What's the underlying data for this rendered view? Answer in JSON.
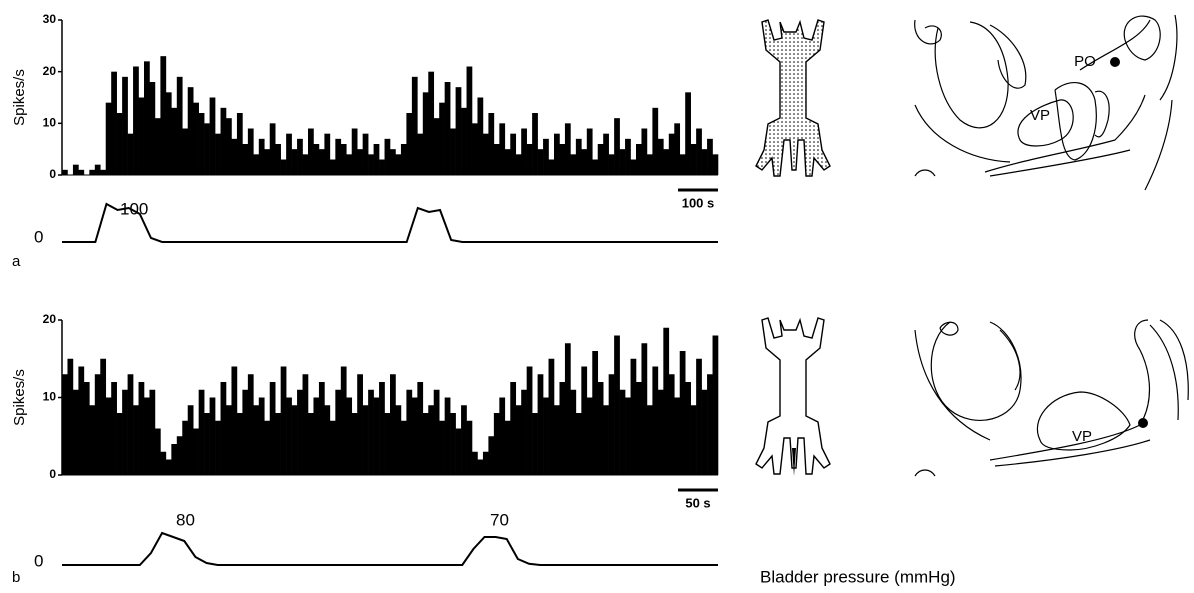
{
  "chart_data": [
    {
      "type": "bar",
      "panel": "a",
      "y_label": "Spikes/s",
      "ylim": [
        0,
        30
      ],
      "yticks": [
        0,
        10,
        20,
        30
      ],
      "color": "#000000",
      "scale_bar": "100 s",
      "values": [
        1,
        0,
        2,
        1,
        0,
        1,
        2,
        1,
        14,
        20,
        12,
        19,
        8,
        21,
        15,
        22,
        18,
        11,
        23,
        16,
        13,
        19,
        9,
        17,
        14,
        12,
        10,
        15,
        8,
        13,
        11,
        7,
        12,
        6,
        9,
        4,
        7,
        5,
        10,
        6,
        3,
        8,
        5,
        7,
        4,
        9,
        6,
        5,
        8,
        3,
        7,
        6,
        4,
        9,
        5,
        8,
        4,
        6,
        3,
        7,
        5,
        4,
        6,
        12,
        19,
        8,
        16,
        20,
        11,
        14,
        18,
        9,
        17,
        13,
        21,
        10,
        15,
        8,
        12,
        6,
        10,
        5,
        8,
        4,
        9,
        6,
        12,
        5,
        7,
        3,
        8,
        6,
        10,
        4,
        7,
        5,
        9,
        3,
        6,
        8,
        4,
        11,
        5,
        7,
        3,
        6,
        9,
        4,
        13,
        7,
        5,
        8,
        10,
        4,
        16,
        6,
        9,
        5,
        7,
        4
      ],
      "pressure": {
        "values": [
          0,
          0,
          0,
          0,
          95,
          80,
          85,
          70,
          10,
          0,
          0,
          0,
          0,
          0,
          0,
          0,
          0,
          0,
          0,
          0,
          0,
          0,
          0,
          0,
          0,
          0,
          0,
          0,
          0,
          0,
          0,
          0,
          85,
          75,
          80,
          5,
          0,
          0,
          0,
          0,
          0,
          0,
          0,
          0,
          0,
          0,
          0,
          0,
          0,
          0,
          0,
          0,
          0,
          0,
          0,
          0,
          0,
          0,
          0,
          0
        ],
        "labels": [
          "0",
          "100"
        ]
      }
    },
    {
      "type": "bar",
      "panel": "b",
      "y_label": "Spikes/s",
      "ylim": [
        0,
        20
      ],
      "yticks": [
        0,
        10,
        20
      ],
      "color": "#000000",
      "scale_bar": "50 s",
      "values": [
        13,
        15,
        11,
        14,
        12,
        9,
        13,
        15,
        10,
        12,
        8,
        11,
        13,
        9,
        12,
        10,
        11,
        6,
        3,
        2,
        4,
        5,
        7,
        9,
        6,
        11,
        8,
        10,
        7,
        12,
        9,
        14,
        8,
        11,
        13,
        9,
        10,
        7,
        12,
        8,
        14,
        10,
        9,
        11,
        13,
        8,
        10,
        12,
        9,
        7,
        11,
        14,
        10,
        8,
        13,
        9,
        11,
        10,
        12,
        8,
        13,
        9,
        7,
        11,
        10,
        12,
        8,
        9,
        11,
        7,
        10,
        8,
        6,
        9,
        7,
        3,
        2,
        3,
        5,
        8,
        10,
        7,
        12,
        9,
        11,
        14,
        8,
        13,
        10,
        15,
        9,
        12,
        17,
        11,
        8,
        14,
        10,
        16,
        12,
        9,
        13,
        18,
        11,
        10,
        15,
        12,
        17,
        9,
        14,
        11,
        19,
        13,
        10,
        16,
        12,
        9,
        15,
        11,
        13,
        18
      ],
      "pressure": {
        "values": [
          0,
          0,
          0,
          0,
          0,
          0,
          0,
          0,
          30,
          80,
          70,
          60,
          20,
          5,
          0,
          0,
          0,
          0,
          0,
          0,
          0,
          0,
          0,
          0,
          0,
          0,
          0,
          0,
          0,
          0,
          0,
          0,
          0,
          0,
          0,
          0,
          0,
          40,
          70,
          70,
          65,
          15,
          3,
          0,
          0,
          0,
          0,
          0,
          0,
          0,
          0,
          0,
          0,
          0,
          0,
          0,
          0,
          0,
          0,
          0
        ],
        "labels": [
          "0",
          "80",
          "70"
        ]
      }
    }
  ],
  "caption": "Bladder pressure (mmHg)",
  "diagrams": [
    {
      "labels": [
        "PO",
        "VP"
      ]
    },
    {
      "labels": [
        "VP"
      ]
    }
  ]
}
